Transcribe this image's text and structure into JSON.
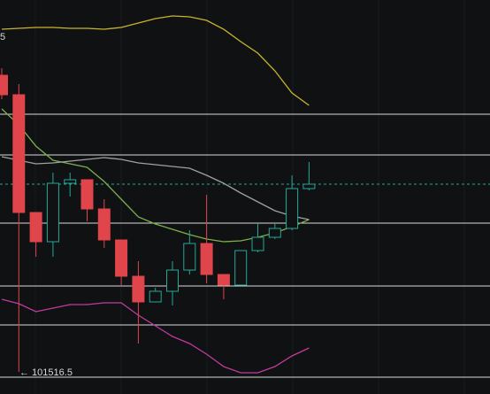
{
  "chart_data": {
    "type": "candlestick",
    "categories": [
      null,
      null,
      null,
      null,
      null,
      null,
      null,
      null,
      null,
      null,
      null,
      null,
      null,
      null,
      null,
      null,
      null,
      null,
      null
    ],
    "open": [
      103191.5,
      103081.5,
      102416.5,
      102251.5,
      102581.5,
      102601.5,
      102436.5,
      102261.5,
      102056.5,
      101911.5,
      101971.5,
      102091.5,
      102241.5,
      102066.5,
      102006.5,
      102201.5,
      102276.5,
      102326.5,
      102551.5
    ],
    "high": [
      103231.5,
      103141.5,
      102416.5,
      102641.5,
      102641.5,
      102601.5,
      102491.5,
      102261.5,
      102141.5,
      101991.5,
      102141.5,
      102316.5,
      102516.5,
      102066.5,
      102201.5,
      102356.5,
      102356.5,
      102626.5,
      102701.5
    ],
    "low": [
      103056.5,
      101516.5,
      102166.5,
      102166.5,
      102506.5,
      102366.5,
      102216.5,
      102006.5,
      101676.5,
      101911.5,
      101891.5,
      102066.5,
      102016.5,
      101926.5,
      102006.5,
      102191.5,
      102266.5,
      102316.5,
      102541.5
    ],
    "close": [
      103081.5,
      102416.5,
      102251.5,
      102581.5,
      102601.5,
      102436.5,
      102261.5,
      102056.5,
      101911.5,
      101971.5,
      102091.5,
      102241.5,
      102066.5,
      102006.5,
      102201.5,
      102276.5,
      102326.5,
      102551.5,
      102576.5
    ],
    "up_color": "#26a69a",
    "down_color": "#e0454b",
    "series": [
      {
        "color": "#c9b42c",
        "values": [
          103451.5,
          103456.5,
          103461.5,
          103461.5,
          103456.5,
          103456.5,
          103451.5,
          103461.5,
          103486.5,
          103511.5,
          103526.5,
          103521.5,
          103501.5,
          103451.5,
          103381.5,
          103316.5,
          103216.5,
          103091.5,
          103021.5
        ]
      },
      {
        "color": "#c23aa0",
        "values": [
          101926.5,
          101901.5,
          101856.5,
          101876.5,
          101896.5,
          101896.5,
          101906.5,
          101906.5,
          101836.5,
          101776.5,
          101716.5,
          101676.5,
          101616.5,
          101546.5,
          101511.5,
          101511.5,
          101546.5,
          101606.5,
          101651.5
        ]
      },
      {
        "color": "#7fae4c",
        "values": [
          103001.5,
          102911.5,
          102791.5,
          102711.5,
          102691.5,
          102671.5,
          102591.5,
          102491.5,
          102391.5,
          102351.5,
          102321.5,
          102291.5,
          102266.5,
          102251.5,
          102256.5,
          102276.5,
          102301.5,
          102336.5,
          102376.5
        ]
      },
      {
        "color": "#a0a0a0",
        "values": [
          102731.5,
          102711.5,
          102691.5,
          102696.5,
          102706.5,
          102716.5,
          102726.5,
          102716.5,
          102696.5,
          102686.5,
          102676.5,
          102666.5,
          102626.5,
          102581.5,
          102526.5,
          102476.5,
          102426.5,
          102396.5,
          102376.5
        ]
      }
    ],
    "levels": [
      102971.5,
      102741.5,
      102356.5,
      102001.5,
      101781.5,
      101486.5
    ],
    "level_color": "#d9d9d9",
    "current_price": 102576.5,
    "current_price_color": "#26a69a",
    "ylim": [
      101391.5,
      103616.5
    ],
    "annotations": [
      "5",
      "← 101516.5"
    ]
  }
}
